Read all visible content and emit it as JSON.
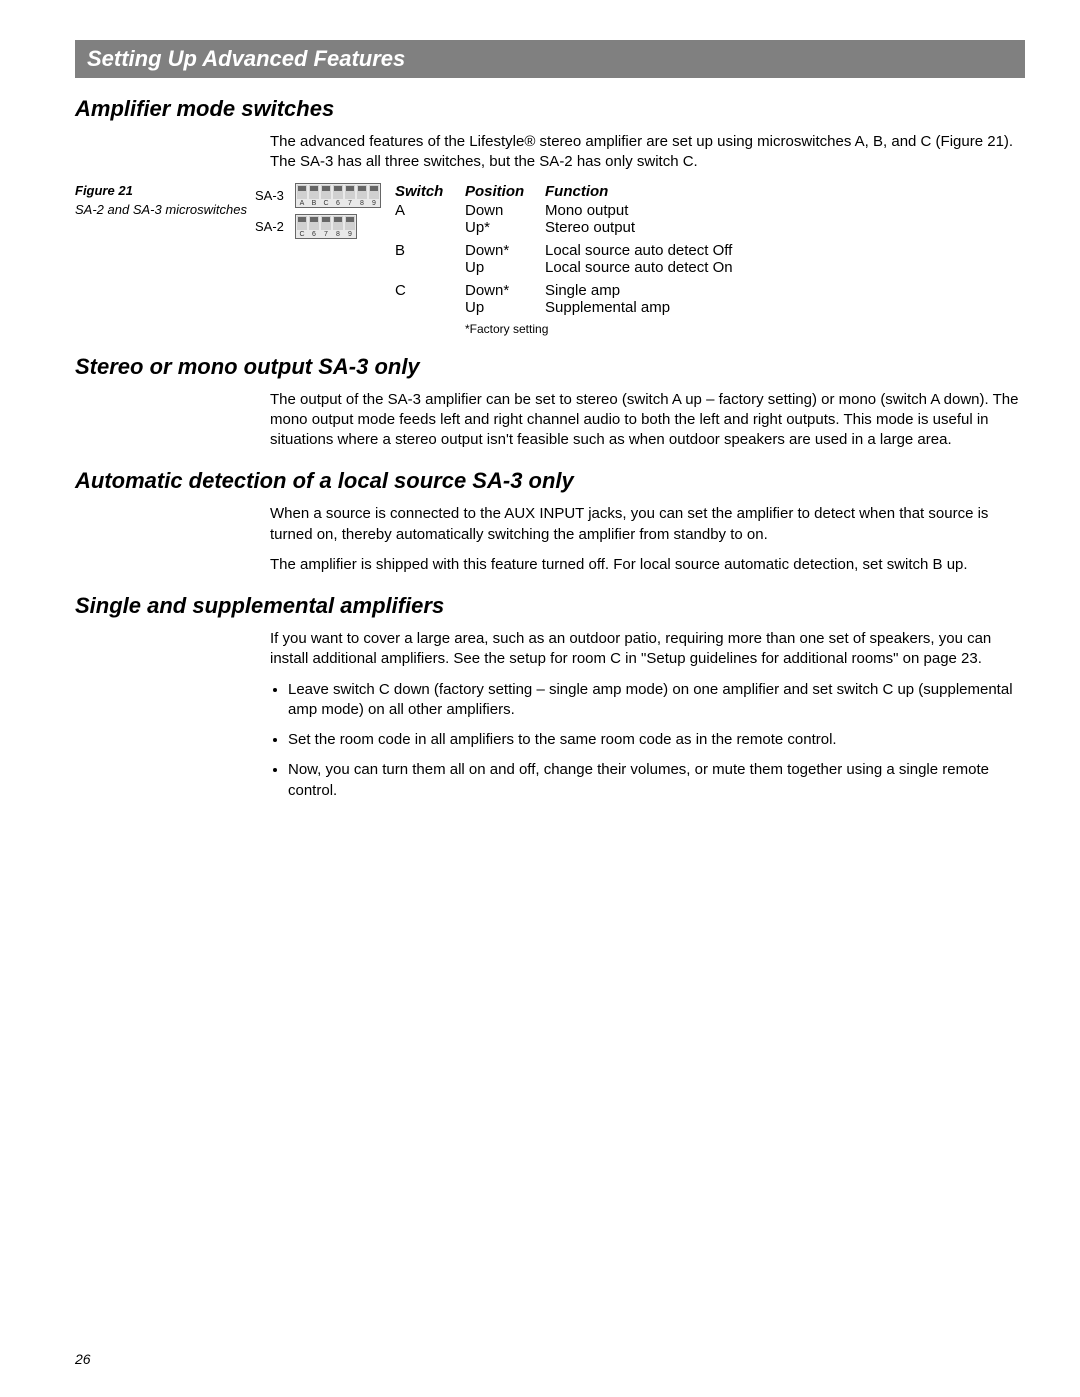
{
  "header": {
    "title": "Setting Up Advanced Features"
  },
  "section1": {
    "heading": "Amplifier mode switches",
    "intro": "The advanced features of the Lifestyle® stereo amplifier are set up using microswitches A, B, and C (Figure 21). The SA-3 has all three switches, but the SA-2 has only switch C.",
    "figure": {
      "title": "Figure 21",
      "caption": "SA-2 and SA-3 microswitches",
      "sa3_label": "SA-3",
      "sa2_label": "SA-2",
      "sa3_dip_labels": [
        "A",
        "B",
        "C",
        "6",
        "7",
        "8",
        "9"
      ],
      "sa2_dip_labels": [
        "C",
        "6",
        "7",
        "8",
        "9"
      ]
    },
    "table": {
      "headers": {
        "switch": "Switch",
        "position": "Position",
        "function": "Function"
      },
      "rows": [
        {
          "switch": "A",
          "position": "Down",
          "function": "Mono output"
        },
        {
          "switch": "",
          "position": "Up*",
          "function": "Stereo output"
        },
        {
          "switch": "B",
          "position": "Down*",
          "function": "Local source auto detect Off"
        },
        {
          "switch": "",
          "position": "Up",
          "function": "Local source auto detect On"
        },
        {
          "switch": "C",
          "position": "Down*",
          "function": "Single amp"
        },
        {
          "switch": "",
          "position": "Up",
          "function": "Supplemental amp"
        }
      ],
      "factory_note": "*Factory setting"
    }
  },
  "section2": {
    "heading": "Stereo or mono output SA-3 only",
    "para": "The output of the SA-3 amplifier can be set to stereo (switch A up – factory setting) or mono (switch A down). The mono output mode feeds left and right channel audio to both the left and right outputs. This mode is useful in situations where a stereo output isn't feasible such as when outdoor speakers are used in a large area."
  },
  "section3": {
    "heading": "Automatic detection of a local source SA-3 only",
    "para1": "When a source is connected to the AUX INPUT jacks, you can set the amplifier to detect when that source is turned on, thereby automatically switching the amplifier from standby to on.",
    "para2": "The amplifier is shipped with this feature turned off. For local source automatic detection, set switch B up."
  },
  "section4": {
    "heading": "Single and supplemental amplifiers",
    "para": "If you want to cover a large area, such as an outdoor patio, requiring more than one set of speakers, you can install additional amplifiers. See the setup for room C in \"Setup guidelines for additional rooms\" on page 23.",
    "bullets": [
      "Leave switch C down (factory setting – single amp mode) on one amplifier and set switch C up (supplemental amp mode) on all other amplifiers.",
      "Set the room code in all amplifiers to the same room code as in the remote control.",
      "Now, you can turn them all on and off, change their volumes, or mute them together using a single remote control."
    ]
  },
  "page_number": "26"
}
